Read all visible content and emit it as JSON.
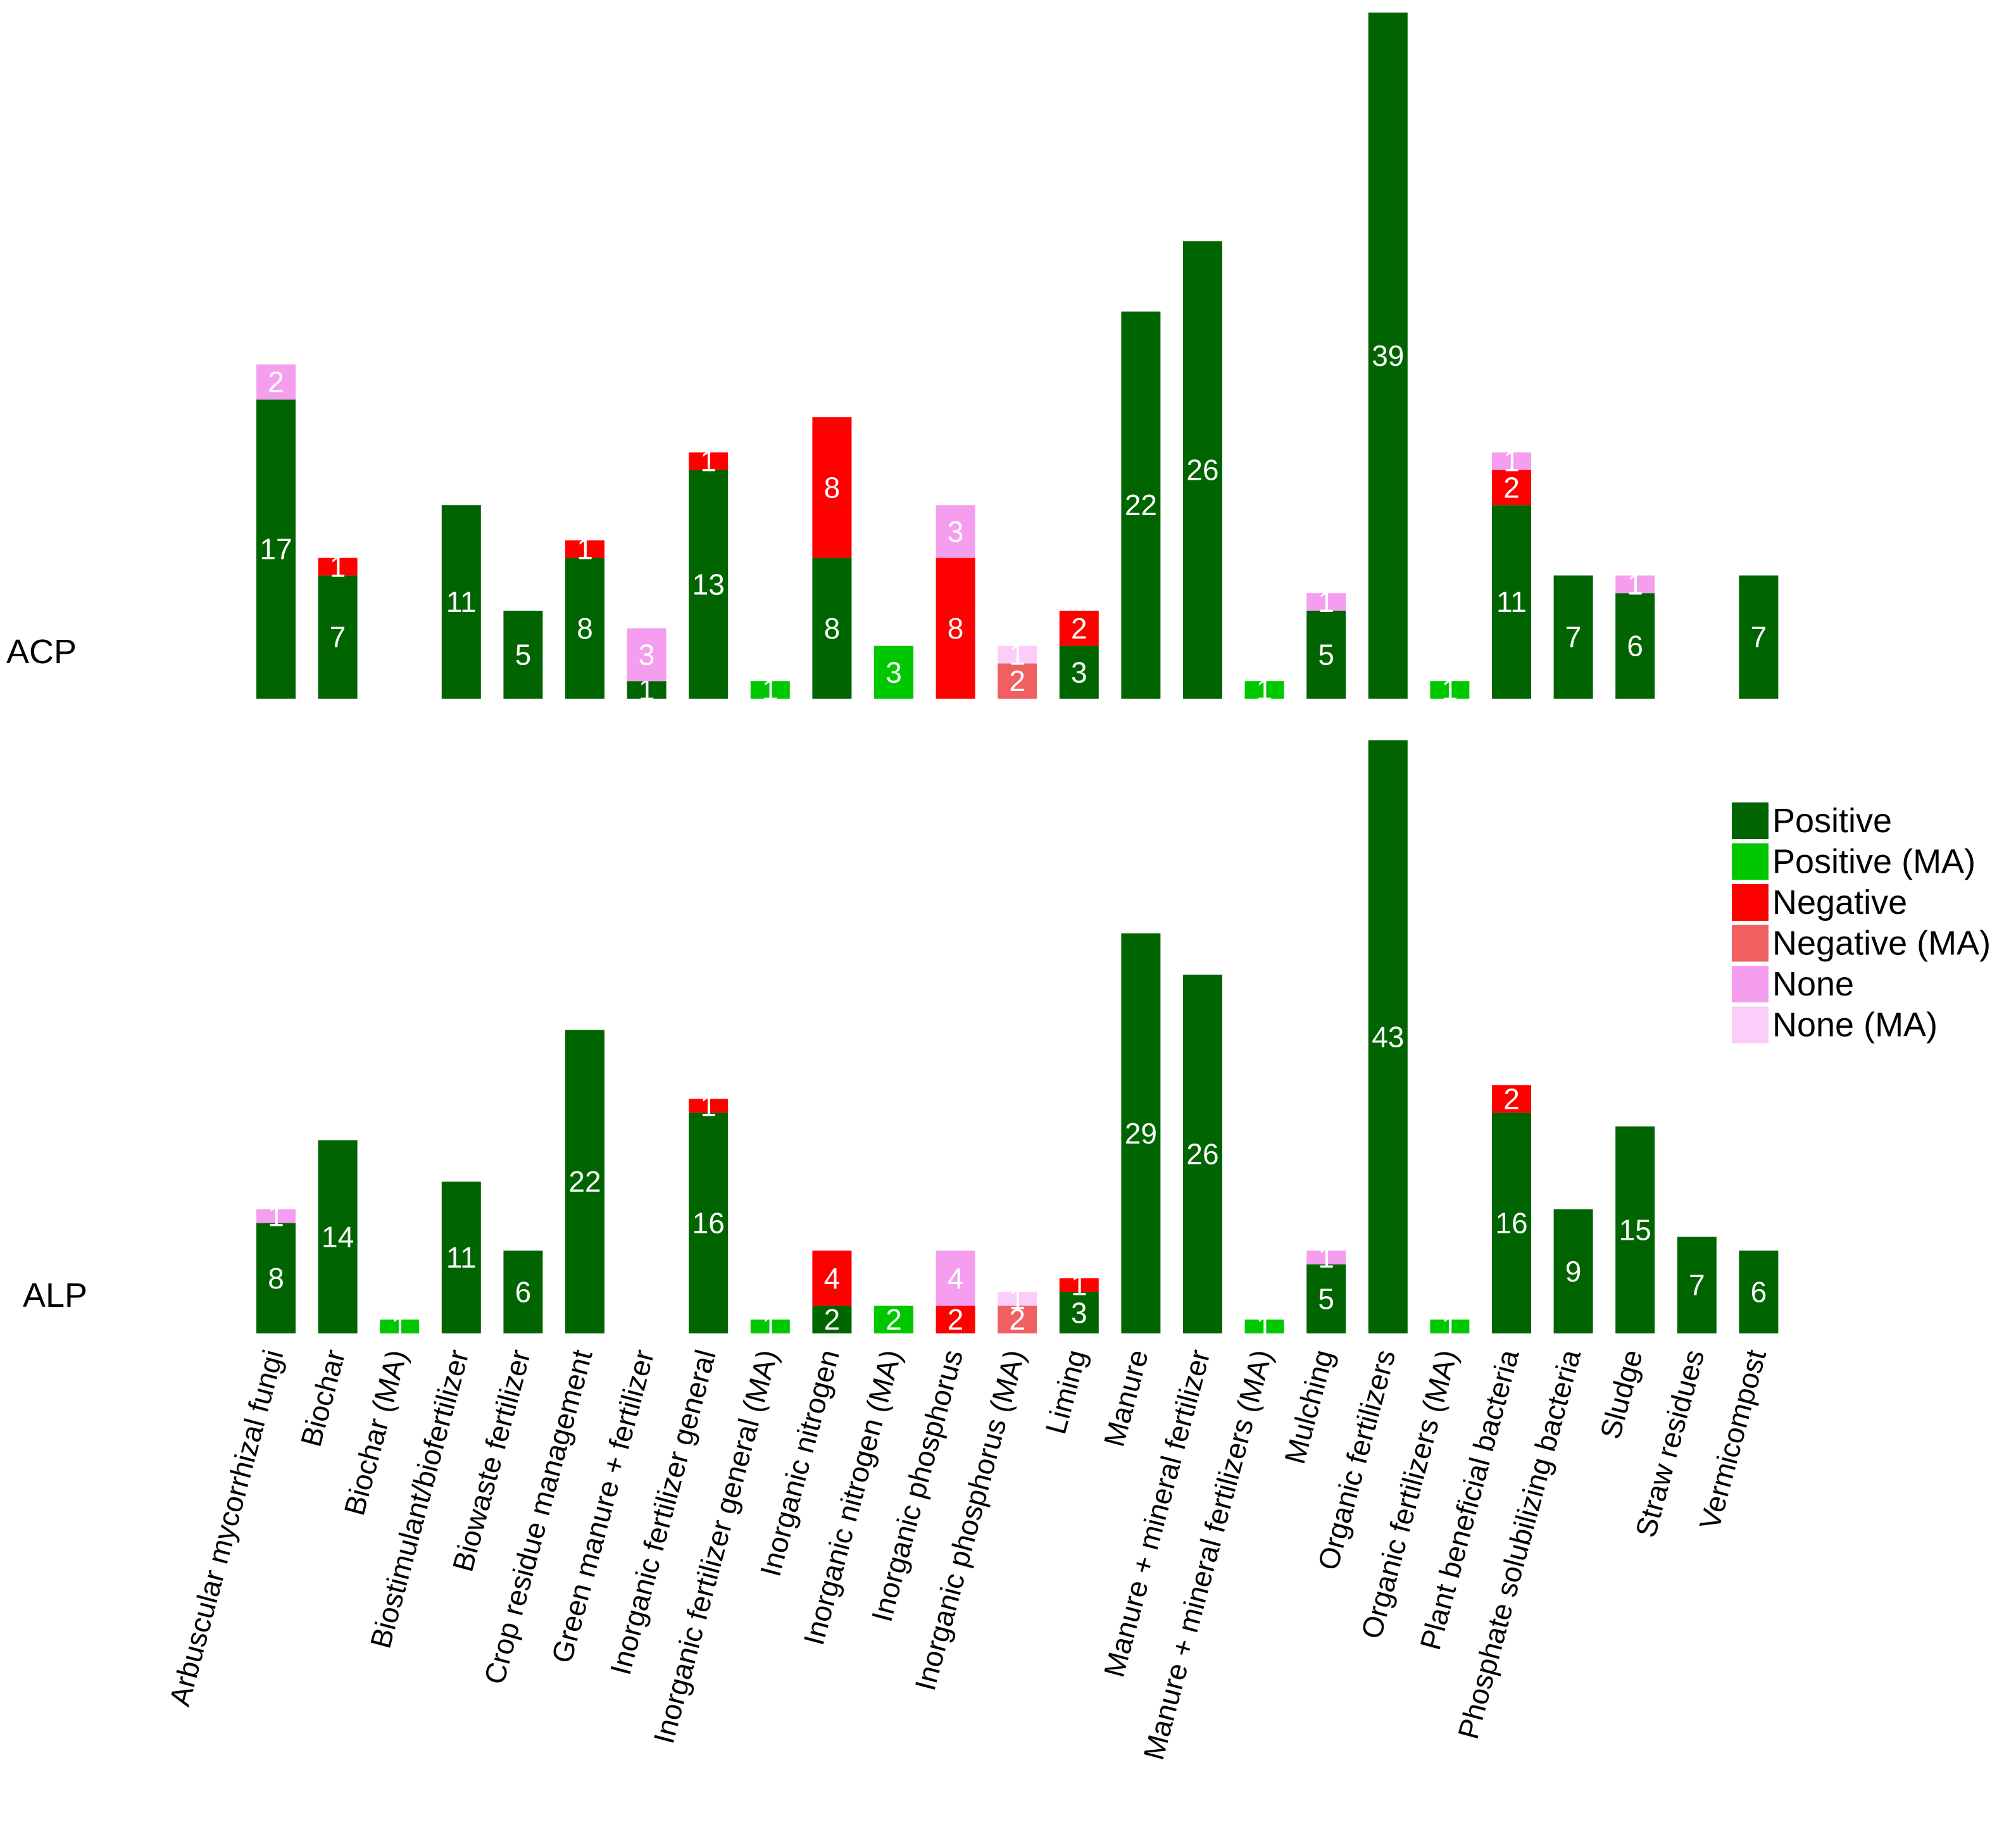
{
  "chart_data": {
    "type": "bar",
    "stacked": true,
    "orientation": "vertical",
    "categories": [
      "Arbuscular mycorrhizal fungi",
      "Biochar",
      "Biochar (MA)",
      "Biostimulant/biofertilizer",
      "Biowaste fertilizer",
      "Crop residue management",
      "Green manure + fertilizer",
      "Inorganic fertilizer general",
      "Inorganic fertilizer general (MA)",
      "Inorganic nitrogen",
      "Inorganic nitrogen (MA)",
      "Inorganic phosphorus",
      "Inorganic phosphorus (MA)",
      "Liming",
      "Manure",
      "Manure + mineral fertilizer",
      "Manure + mineral fertilizers (MA)",
      "Mulching",
      "Organic fertilizers",
      "Organic fertilizers (MA)",
      "Plant beneficial bacteria",
      "Phosphate solubilizing bacteria",
      "Sludge",
      "Straw residues",
      "Vermicompost"
    ],
    "legend": {
      "position": "right",
      "entries": [
        {
          "name": "Positive",
          "color": "#006400"
        },
        {
          "name": "Positive (MA)",
          "color": "#00c800"
        },
        {
          "name": "Negative",
          "color": "#ff0000"
        },
        {
          "name": "Negative (MA)",
          "color": "#f06060"
        },
        {
          "name": "None",
          "color": "#f59ef0"
        },
        {
          "name": "None (MA)",
          "color": "#fbcdf8"
        }
      ]
    },
    "panels": [
      {
        "label": "ACP",
        "series": [
          {
            "name": "Positive",
            "values": [
              17,
              7,
              0,
              11,
              5,
              8,
              1,
              13,
              0,
              8,
              0,
              0,
              0,
              3,
              22,
              26,
              0,
              5,
              39,
              0,
              11,
              7,
              6,
              0,
              7
            ]
          },
          {
            "name": "Positive (MA)",
            "values": [
              0,
              0,
              0,
              0,
              0,
              0,
              0,
              0,
              1,
              0,
              3,
              0,
              0,
              0,
              0,
              0,
              1,
              0,
              0,
              1,
              0,
              0,
              0,
              0,
              0
            ]
          },
          {
            "name": "Negative",
            "values": [
              0,
              1,
              0,
              0,
              0,
              1,
              0,
              1,
              0,
              8,
              0,
              8,
              0,
              2,
              0,
              0,
              0,
              0,
              0,
              0,
              2,
              0,
              0,
              0,
              0
            ]
          },
          {
            "name": "Negative (MA)",
            "values": [
              0,
              0,
              0,
              0,
              0,
              0,
              0,
              0,
              0,
              0,
              0,
              0,
              2,
              0,
              0,
              0,
              0,
              0,
              0,
              0,
              0,
              0,
              0,
              0,
              0
            ]
          },
          {
            "name": "None",
            "values": [
              2,
              0,
              0,
              0,
              0,
              0,
              3,
              0,
              0,
              0,
              0,
              3,
              0,
              0,
              0,
              0,
              0,
              1,
              0,
              0,
              1,
              0,
              1,
              0,
              0
            ]
          },
          {
            "name": "None (MA)",
            "values": [
              0,
              0,
              0,
              0,
              0,
              0,
              0,
              0,
              0,
              0,
              0,
              0,
              1,
              0,
              0,
              0,
              0,
              0,
              0,
              0,
              0,
              0,
              0,
              0,
              0
            ]
          }
        ]
      },
      {
        "label": "ALP",
        "series": [
          {
            "name": "Positive",
            "values": [
              8,
              14,
              0,
              11,
              6,
              22,
              0,
              16,
              0,
              2,
              0,
              0,
              0,
              3,
              29,
              26,
              0,
              5,
              43,
              0,
              16,
              9,
              15,
              7,
              6
            ]
          },
          {
            "name": "Positive (MA)",
            "values": [
              0,
              0,
              1,
              0,
              0,
              0,
              0,
              0,
              1,
              0,
              2,
              0,
              0,
              0,
              0,
              0,
              1,
              0,
              0,
              1,
              0,
              0,
              0,
              0,
              0
            ]
          },
          {
            "name": "Negative",
            "values": [
              0,
              0,
              0,
              0,
              0,
              0,
              0,
              1,
              0,
              4,
              0,
              2,
              0,
              1,
              0,
              0,
              0,
              0,
              0,
              0,
              2,
              0,
              0,
              0,
              0
            ]
          },
          {
            "name": "Negative (MA)",
            "values": [
              0,
              0,
              0,
              0,
              0,
              0,
              0,
              0,
              0,
              0,
              0,
              0,
              2,
              0,
              0,
              0,
              0,
              0,
              0,
              0,
              0,
              0,
              0,
              0,
              0
            ]
          },
          {
            "name": "None",
            "values": [
              1,
              0,
              0,
              0,
              0,
              0,
              0,
              0,
              0,
              0,
              0,
              4,
              0,
              0,
              0,
              0,
              0,
              1,
              0,
              0,
              0,
              0,
              0,
              0,
              0
            ]
          },
          {
            "name": "None (MA)",
            "values": [
              0,
              0,
              0,
              0,
              0,
              0,
              0,
              0,
              0,
              0,
              0,
              0,
              1,
              0,
              0,
              0,
              0,
              0,
              0,
              0,
              0,
              0,
              0,
              0,
              0
            ]
          }
        ]
      }
    ],
    "title": "",
    "xlabel": "",
    "ylabel": "",
    "grid": false
  }
}
